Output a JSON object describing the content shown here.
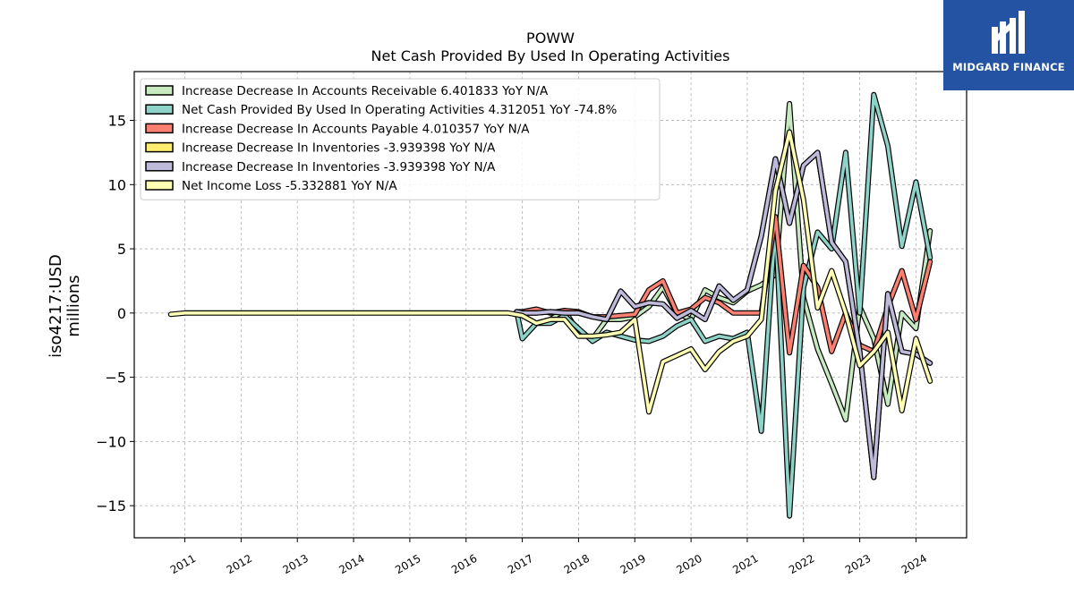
{
  "chart_data": {
    "type": "line",
    "title": "POWW",
    "subtitle": "Net Cash Provided By Used In Operating Activities",
    "ylabel": "iso4217:USD millions",
    "ylabel_lines": [
      "iso4217:USD",
      "millions"
    ],
    "xlabel": "",
    "xlim": [
      2010.1,
      2024.9
    ],
    "ylim": [
      -17.5,
      18.8
    ],
    "yticks": [
      -15,
      -10,
      -5,
      0,
      5,
      10,
      15
    ],
    "ytick_labels": [
      "−15",
      "−10",
      "−5",
      "0",
      "5",
      "10",
      "15"
    ],
    "xticks": [
      2011,
      2012,
      2013,
      2014,
      2015,
      2016,
      2017,
      2018,
      2019,
      2020,
      2021,
      2022,
      2023,
      2024
    ],
    "xtick_labels": [
      "2011",
      "2012",
      "2013",
      "2014",
      "2015",
      "2016",
      "2017",
      "2018",
      "2019",
      "2020",
      "2021",
      "2022",
      "2023",
      "2024"
    ],
    "grid": true,
    "legend_position": "top-left",
    "series": [
      {
        "name": "Increase Decrease In Accounts Receivable  6.401833 YoY N/A",
        "color": "#c7e9c0",
        "x": [
          2016.9,
          2017.0,
          2017.25,
          2017.5,
          2017.75,
          2018.0,
          2018.25,
          2018.5,
          2018.75,
          2019.0,
          2019.25,
          2019.5,
          2019.75,
          2020.0,
          2020.25,
          2020.5,
          2020.75,
          2021.0,
          2021.25,
          2021.5,
          2021.75,
          2022.0,
          2022.25,
          2022.5,
          2022.75,
          2023.0,
          2023.25,
          2023.5,
          2023.75,
          2024.0,
          2024.25
        ],
        "values": [
          0.1,
          -0.2,
          -0.8,
          -0.5,
          0.2,
          -1.5,
          -2.0,
          -0.5,
          -0.5,
          -0.3,
          0.5,
          2.0,
          0.0,
          -0.5,
          1.8,
          1.2,
          0.8,
          1.7,
          2.2,
          3.0,
          16.3,
          1.2,
          -2.8,
          -5.5,
          -8.3,
          0.5,
          -2.0,
          -7.1,
          0.0,
          -1.2,
          6.4
        ]
      },
      {
        "name": "Net Cash Provided By Used In Operating Activities  4.312051 YoY -74.8%",
        "color": "#8dd3c7",
        "x": [
          2016.9,
          2017.0,
          2017.25,
          2017.5,
          2017.75,
          2018.0,
          2018.25,
          2018.5,
          2018.75,
          2019.0,
          2019.25,
          2019.5,
          2019.75,
          2020.0,
          2020.25,
          2020.5,
          2020.75,
          2021.0,
          2021.25,
          2021.5,
          2021.75,
          2022.0,
          2022.25,
          2022.5,
          2022.75,
          2023.0,
          2023.25,
          2023.5,
          2023.75,
          2024.0,
          2024.25
        ],
        "values": [
          0.1,
          -2.0,
          -0.8,
          -0.8,
          -0.2,
          -1.2,
          -2.2,
          -1.5,
          -1.8,
          -2.1,
          -2.2,
          -1.8,
          -1.0,
          -0.5,
          -2.2,
          -1.8,
          -2.0,
          -1.5,
          -9.2,
          7.0,
          -15.8,
          2.0,
          6.3,
          5.0,
          12.5,
          0.0,
          17.0,
          13.0,
          5.2,
          10.2,
          4.3
        ]
      },
      {
        "name": "Increase Decrease In Accounts Payable  4.010357 YoY N/A",
        "color": "#fb8072",
        "x": [
          2016.9,
          2017.0,
          2017.25,
          2017.5,
          2017.75,
          2018.0,
          2018.25,
          2018.5,
          2018.75,
          2019.0,
          2019.25,
          2019.5,
          2019.75,
          2020.0,
          2020.25,
          2020.5,
          2020.75,
          2021.0,
          2021.25,
          2021.5,
          2021.75,
          2022.0,
          2022.25,
          2022.5,
          2022.75,
          2023.0,
          2023.25,
          2023.5,
          2023.75,
          2024.0,
          2024.25
        ],
        "values": [
          0.1,
          0.1,
          0.3,
          0.0,
          0.2,
          0.1,
          -0.3,
          -0.3,
          -0.2,
          -0.1,
          1.8,
          2.5,
          0.0,
          0.3,
          1.2,
          0.8,
          0.0,
          0.0,
          0.0,
          7.5,
          -3.1,
          3.7,
          2.0,
          -3.0,
          0.0,
          -2.5,
          -3.0,
          0.5,
          3.3,
          -0.5,
          4.0
        ]
      },
      {
        "name": "Increase Decrease In Inventories  -3.939398 YoY N/A",
        "color": "#ffed6f",
        "x": [
          2016.9,
          2017.0,
          2017.25,
          2017.5,
          2017.75,
          2018.0,
          2018.25,
          2018.5,
          2018.75,
          2019.0,
          2019.25,
          2019.5,
          2019.75,
          2020.0,
          2020.25,
          2020.5,
          2020.75,
          2021.0,
          2021.25,
          2021.5,
          2021.75,
          2022.0,
          2022.25,
          2022.5,
          2022.75,
          2023.0,
          2023.25,
          2023.5,
          2023.75,
          2024.0,
          2024.25
        ],
        "values": [
          0.1,
          0.0,
          0.0,
          0.1,
          0.0,
          0.0,
          -0.3,
          -0.5,
          1.7,
          0.5,
          0.8,
          0.7,
          -0.4,
          0.2,
          -0.5,
          2.1,
          1.0,
          1.8,
          6.0,
          12.0,
          7.0,
          11.5,
          12.5,
          5.5,
          4.0,
          -3.0,
          -12.8,
          1.5,
          -3.0,
          -3.2,
          -3.9
        ]
      },
      {
        "name": "Increase Decrease In Inventories  -3.939398 YoY N/A",
        "color": "#bebada",
        "x": [
          2016.9,
          2017.0,
          2017.25,
          2017.5,
          2017.75,
          2018.0,
          2018.25,
          2018.5,
          2018.75,
          2019.0,
          2019.25,
          2019.5,
          2019.75,
          2020.0,
          2020.25,
          2020.5,
          2020.75,
          2021.0,
          2021.25,
          2021.5,
          2021.75,
          2022.0,
          2022.25,
          2022.5,
          2022.75,
          2023.0,
          2023.25,
          2023.5,
          2023.75,
          2024.0,
          2024.25
        ],
        "values": [
          0.1,
          0.0,
          0.0,
          0.1,
          0.0,
          0.0,
          -0.3,
          -0.5,
          1.7,
          0.5,
          0.8,
          0.7,
          -0.4,
          0.2,
          -0.5,
          2.1,
          1.0,
          1.8,
          6.0,
          12.0,
          7.0,
          11.5,
          12.5,
          5.5,
          4.0,
          -3.0,
          -12.8,
          1.5,
          -3.0,
          -3.2,
          -3.9
        ]
      },
      {
        "name": "Net Income Loss  -5.332881 YoY N/A",
        "color": "#ffffb3",
        "x": [
          2010.75,
          2011.0,
          2012.0,
          2013.0,
          2014.0,
          2015.0,
          2016.0,
          2016.75,
          2017.0,
          2017.25,
          2017.5,
          2017.75,
          2018.0,
          2018.25,
          2018.5,
          2018.75,
          2019.0,
          2019.25,
          2019.5,
          2019.75,
          2020.0,
          2020.25,
          2020.5,
          2020.75,
          2021.0,
          2021.25,
          2021.5,
          2021.75,
          2022.0,
          2022.25,
          2022.5,
          2022.75,
          2023.0,
          2023.25,
          2023.5,
          2023.75,
          2024.0,
          2024.25
        ],
        "values": [
          -0.1,
          0.0,
          0.0,
          0.0,
          0.0,
          0.0,
          0.0,
          0.0,
          -0.2,
          -0.8,
          -0.5,
          -0.5,
          -1.8,
          -1.8,
          -1.7,
          -1.5,
          -0.5,
          -7.7,
          -3.8,
          -3.3,
          -2.8,
          -4.4,
          -3.0,
          -2.2,
          -1.8,
          -0.5,
          9.5,
          14.1,
          8.8,
          0.4,
          3.3,
          0.0,
          -4.1,
          -3.0,
          -1.5,
          -7.6,
          -2.0,
          -5.3
        ]
      }
    ]
  },
  "logo": {
    "text": "MIDGARD FINANCE",
    "background": "#2553a4"
  }
}
